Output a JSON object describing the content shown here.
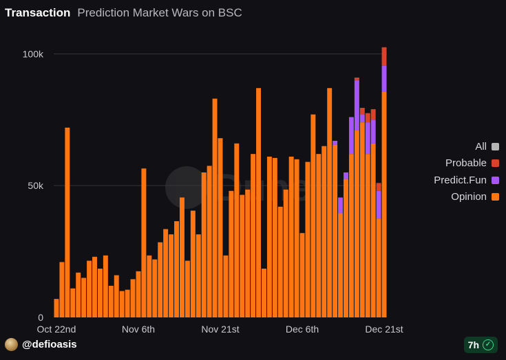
{
  "header": {
    "title": "Transaction",
    "subtitle": "Prediction Market Wars on BSC"
  },
  "watermark": {
    "text": "Dune"
  },
  "footer": {
    "handle": "@defioasis",
    "age": "7h",
    "check_glyph": "✓"
  },
  "colors": {
    "background": "#111115",
    "all": "#b5b5b5",
    "probable": "#d9432b",
    "predict_fun": "#a855f7",
    "opinion": "#ff7512",
    "grid": "#34343a"
  },
  "chart_data": {
    "type": "bar",
    "stacked": true,
    "title": "Transaction",
    "subtitle": "Prediction Market Wars on BSC",
    "xlabel": "",
    "ylabel": "",
    "ylim": [
      0,
      110000
    ],
    "yticks": [
      {
        "value": 0,
        "label": "0"
      },
      {
        "value": 50000,
        "label": "50k"
      },
      {
        "value": 100000,
        "label": "100k"
      }
    ],
    "xticks": [
      {
        "index": 0,
        "label": "Oct 22nd"
      },
      {
        "index": 15,
        "label": "Nov 6th"
      },
      {
        "index": 30,
        "label": "Nov 21st"
      },
      {
        "index": 45,
        "label": "Dec 6th"
      },
      {
        "index": 60,
        "label": "Dec 21st"
      }
    ],
    "legend_position": "right",
    "legend": [
      {
        "name": "All",
        "color": "#b5b5b5"
      },
      {
        "name": "Probable",
        "color": "#d9432b"
      },
      {
        "name": "Predict.Fun",
        "color": "#a855f7"
      },
      {
        "name": "Opinion",
        "color": "#ff7512"
      }
    ],
    "series": [
      {
        "name": "Opinion",
        "color": "#ff7512",
        "values": [
          7000,
          21000,
          72000,
          11000,
          17000,
          15000,
          21500,
          23000,
          18500,
          23500,
          12000,
          16000,
          10000,
          10500,
          14500,
          17500,
          56500,
          23500,
          22000,
          28500,
          33500,
          31500,
          36500,
          45500,
          21500,
          40500,
          31500,
          55000,
          57500,
          83000,
          68000,
          23500,
          48000,
          66000,
          46500,
          48500,
          62000,
          87000,
          18500,
          61000,
          60500,
          42000,
          48500,
          61000,
          60000,
          32000,
          59000,
          77000,
          62000,
          65000,
          87000,
          65500,
          39500,
          52500,
          62000,
          71000,
          74000,
          62000,
          66000,
          37500,
          85500
        ]
      },
      {
        "name": "Predict.Fun",
        "color": "#a855f7",
        "values": [
          0,
          0,
          0,
          0,
          0,
          0,
          0,
          0,
          0,
          0,
          0,
          0,
          0,
          0,
          0,
          0,
          0,
          0,
          0,
          0,
          0,
          0,
          0,
          0,
          0,
          0,
          0,
          0,
          0,
          0,
          0,
          0,
          0,
          0,
          0,
          0,
          0,
          0,
          0,
          0,
          0,
          0,
          0,
          0,
          0,
          0,
          0,
          0,
          0,
          0,
          0,
          1500,
          6000,
          2500,
          14000,
          19000,
          3000,
          12000,
          9000,
          10500,
          10000
        ]
      },
      {
        "name": "Probable",
        "color": "#d9432b",
        "values": [
          0,
          0,
          0,
          0,
          0,
          0,
          0,
          0,
          0,
          0,
          0,
          0,
          0,
          0,
          0,
          0,
          0,
          0,
          0,
          0,
          0,
          0,
          0,
          0,
          0,
          0,
          0,
          0,
          0,
          0,
          0,
          0,
          0,
          0,
          0,
          0,
          0,
          0,
          0,
          0,
          0,
          0,
          0,
          0,
          0,
          0,
          0,
          0,
          0,
          0,
          0,
          0,
          0,
          0,
          0,
          1000,
          2500,
          3500,
          4000,
          3000,
          7000
        ]
      }
    ]
  }
}
